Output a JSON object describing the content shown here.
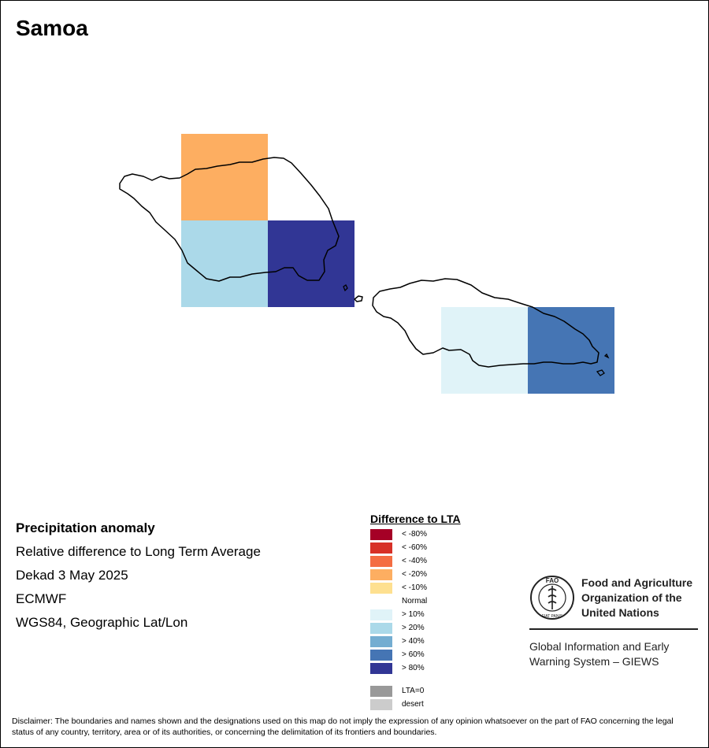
{
  "map": {
    "title": "Samoa",
    "cells": [
      {
        "category": "< -20%",
        "color": "#FDAE61"
      },
      {
        "category": "> 20%",
        "color": "#ABD9E9"
      },
      {
        "category": "> 80%",
        "color": "#313695"
      },
      {
        "category": "> 10%",
        "color": "#E0F3F8"
      },
      {
        "category": "> 60%",
        "color": "#4575B4"
      }
    ]
  },
  "info": {
    "heading": "Precipitation anomaly",
    "line1": "Relative difference to Long Term Average",
    "line2": "Dekad 3 May 2025",
    "line3": "ECMWF",
    "line4": "WGS84, Geographic Lat/Lon"
  },
  "legend": {
    "title": "Difference to LTA",
    "items": [
      {
        "label": "< -80%",
        "color": "#A50026"
      },
      {
        "label": "< -60%",
        "color": "#D73027"
      },
      {
        "label": "< -40%",
        "color": "#F46D43"
      },
      {
        "label": "< -20%",
        "color": "#FDAE61"
      },
      {
        "label": "< -10%",
        "color": "#FEE090"
      },
      {
        "label": "Normal",
        "color": "#FFFFFF"
      },
      {
        "label": "> 10%",
        "color": "#E0F3F8"
      },
      {
        "label": "> 20%",
        "color": "#ABD9E9"
      },
      {
        "label": "> 40%",
        "color": "#74ADD1"
      },
      {
        "label": "> 60%",
        "color": "#4575B4"
      },
      {
        "label": "> 80%",
        "color": "#313695"
      }
    ],
    "extra": [
      {
        "label": "LTA=0",
        "color": "#999999"
      },
      {
        "label": "desert",
        "color": "#CCCCCC"
      }
    ]
  },
  "logo": {
    "org_line1": "Food and Agriculture",
    "org_line2": "Organization of the",
    "org_line3": "United Nations",
    "seal_text": "FAO",
    "seal_motto": "FIAT PANIS",
    "giews_line1": "Global Information and Early",
    "giews_line2": "Warning System – GIEWS"
  },
  "disclaimer": "Disclaimer: The boundaries and names shown and the designations used on this map do not imply the expression of any opinion whatsoever on the part of FAO concerning the legal status of any country, territory, area or of its authorities, or concerning the delimitation of its frontiers and boundaries."
}
